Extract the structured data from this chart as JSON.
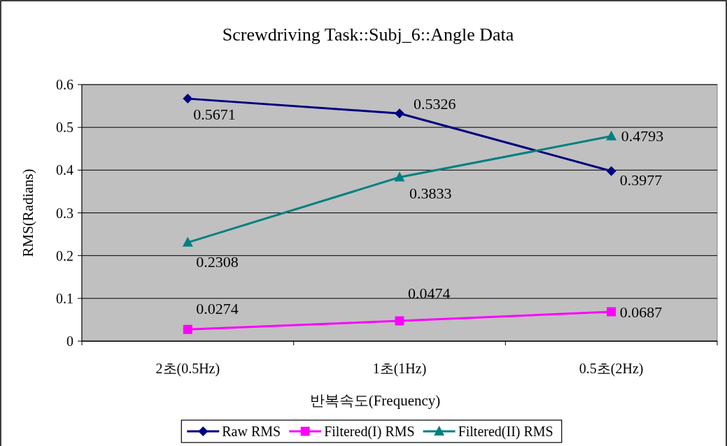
{
  "chart_data": {
    "type": "line",
    "title": "Screwdriving Task::Subj_6::Angle Data",
    "xlabel": "반복속도(Frequency)",
    "ylabel": "RMS(Radians)",
    "categories": [
      "2초(0.5Hz)",
      "1초(1Hz)",
      "0.5초(2Hz)"
    ],
    "series": [
      {
        "name": "Raw RMS",
        "color": "#000080",
        "marker": "diamond",
        "values": [
          0.5671,
          0.5326,
          0.3977
        ]
      },
      {
        "name": "Filtered(I) RMS",
        "color": "#ff00ff",
        "marker": "square",
        "values": [
          0.0274,
          0.0474,
          0.0687
        ]
      },
      {
        "name": "Filtered(II) RMS",
        "color": "#008080",
        "marker": "triangle",
        "values": [
          0.2308,
          0.3833,
          0.4793
        ]
      }
    ],
    "ylim": [
      0,
      0.6
    ],
    "yticks": [
      0,
      0.1,
      0.2,
      0.3,
      0.4,
      0.5,
      0.6
    ],
    "grid": "y",
    "legend": "bottom",
    "data_labels": true
  }
}
